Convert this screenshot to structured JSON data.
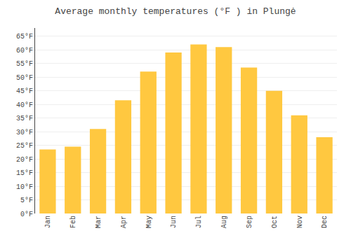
{
  "chart_data": {
    "type": "bar",
    "title": "Average monthly temperatures (°F ) in Plungė",
    "categories": [
      "Jan",
      "Feb",
      "Mar",
      "Apr",
      "May",
      "Jun",
      "Jul",
      "Aug",
      "Sep",
      "Oct",
      "Nov",
      "Dec"
    ],
    "values": [
      23.5,
      24.5,
      31.0,
      41.5,
      52.0,
      59.0,
      62.0,
      61.0,
      53.5,
      45.0,
      36.0,
      28.0
    ],
    "color": "#FFC840",
    "ylim": [
      0,
      68
    ],
    "yticks": [
      {
        "value": 0,
        "label": "0°F"
      },
      {
        "value": 5,
        "label": "5°F"
      },
      {
        "value": 10,
        "label": "10°F"
      },
      {
        "value": 15,
        "label": "15°F"
      },
      {
        "value": 20,
        "label": "20°F"
      },
      {
        "value": 25,
        "label": "25°F"
      },
      {
        "value": 30,
        "label": "30°F"
      },
      {
        "value": 35,
        "label": "35°F"
      },
      {
        "value": 40,
        "label": "40°F"
      },
      {
        "value": 45,
        "label": "45°F"
      },
      {
        "value": 50,
        "label": "50°F"
      },
      {
        "value": 55,
        "label": "55°F"
      },
      {
        "value": 60,
        "label": "60°F"
      },
      {
        "value": 65,
        "label": "65°F"
      }
    ],
    "grid": true
  }
}
